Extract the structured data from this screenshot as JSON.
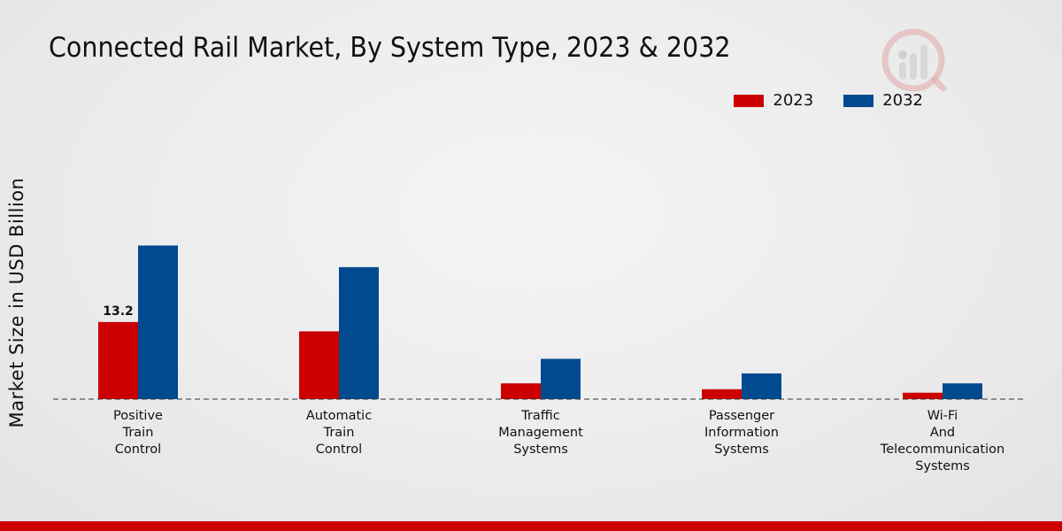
{
  "chart_data": {
    "type": "bar",
    "title": "Connected Rail Market, By System Type, 2023 & 2032",
    "xlabel": "",
    "ylabel": "Market Size in USD Billion",
    "categories": [
      "Positive Train Control",
      "Automatic Train Control",
      "Traffic Management Systems",
      "Passenger Information Systems",
      "Wi-Fi And Telecommunication Systems"
    ],
    "category_lines": [
      [
        "Positive",
        "Train",
        "Control"
      ],
      [
        "Automatic",
        "Train",
        "Control"
      ],
      [
        "Traffic",
        "Management",
        "Systems"
      ],
      [
        "Passenger",
        "Information",
        "Systems"
      ],
      [
        "Wi-Fi",
        "And",
        "Telecommunication",
        "Systems"
      ]
    ],
    "series": [
      {
        "name": "2023",
        "color": "#cc0000",
        "values": [
          13.2,
          11.6,
          2.7,
          1.7,
          1.1
        ]
      },
      {
        "name": "2032",
        "color": "#004a8f",
        "values": [
          26.3,
          22.6,
          6.9,
          4.4,
          2.7
        ]
      }
    ],
    "data_labels": [
      {
        "series": 0,
        "index": 0,
        "text": "13.2"
      }
    ],
    "ylim": [
      0,
      40
    ],
    "grid": false,
    "legend_position": "top-right"
  }
}
